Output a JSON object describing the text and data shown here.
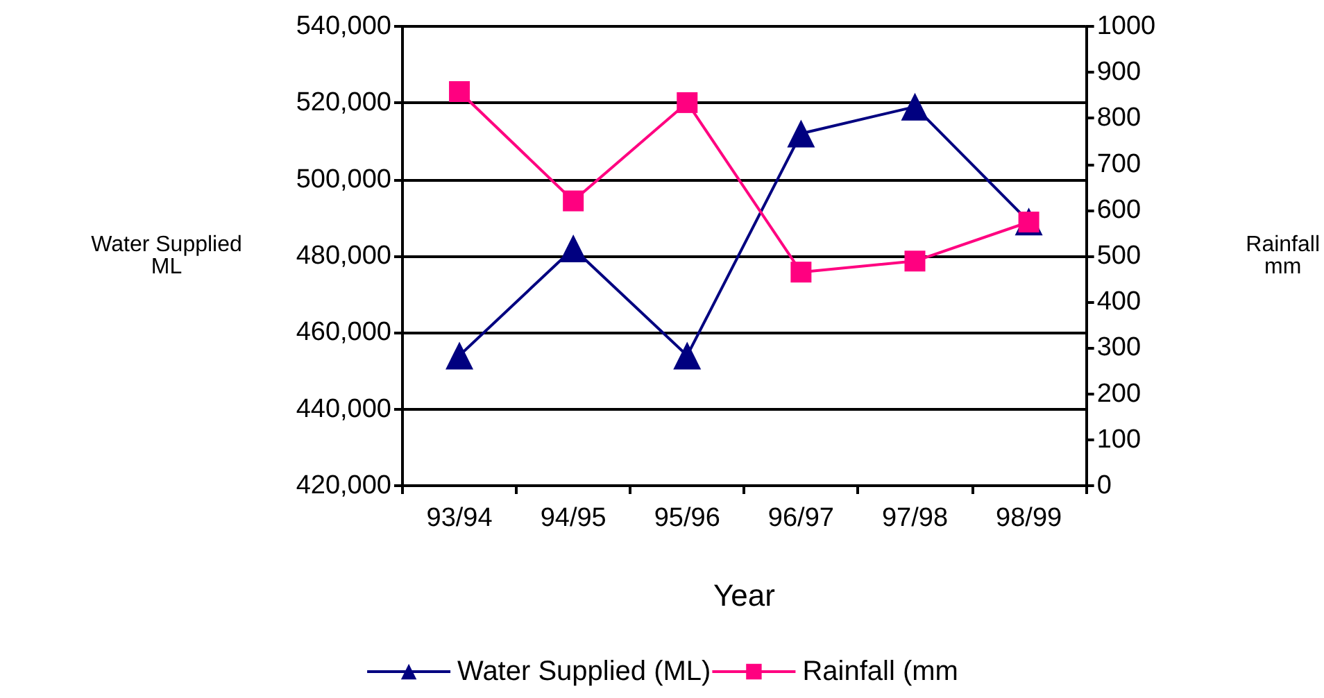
{
  "chart_data": {
    "type": "line",
    "xlabel": "Year",
    "ylabel": "Water Supplied\nML",
    "y2label": "Rainfall\nmm",
    "categories": [
      "93/94",
      "94/95",
      "95/96",
      "96/97",
      "97/98",
      "98/99"
    ],
    "series": [
      {
        "name": "Water Supplied (ML)",
        "color": "#000080",
        "marker": "triangle",
        "values": [
          454000,
          482000,
          454000,
          512000,
          519000,
          489000
        ]
      },
      {
        "name": "Rainfall (mm",
        "color": "#ff0080",
        "marker": "square",
        "axis": "y2",
        "values": [
          858,
          620,
          834,
          465,
          489,
          574
        ]
      }
    ],
    "ylim": [
      420000,
      540000
    ],
    "yticks": [
      {
        "value": 420000,
        "label": "420,000"
      },
      {
        "value": 440000,
        "label": "440,000"
      },
      {
        "value": 460000,
        "label": "460,000"
      },
      {
        "value": 480000,
        "label": "480,000"
      },
      {
        "value": 500000,
        "label": "500,000"
      },
      {
        "value": 520000,
        "label": "520,000"
      },
      {
        "value": 540000,
        "label": "540,000"
      }
    ],
    "y2lim": [
      0,
      1000
    ],
    "y2ticks": [
      0,
      100,
      200,
      300,
      400,
      500,
      600,
      700,
      800,
      900,
      1000
    ],
    "grid": "y",
    "legend": "bottom",
    "line_style": "solid"
  }
}
